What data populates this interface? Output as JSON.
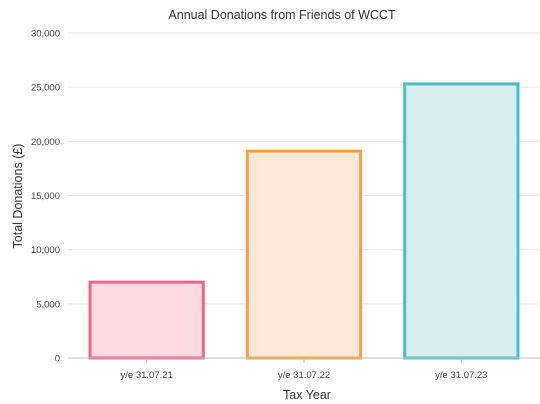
{
  "chart_data": {
    "type": "bar",
    "title": "Annual Donations from Friends of WCCT",
    "xlabel": "Tax Year",
    "ylabel": "Total Donations (£)",
    "categories": [
      "y/e 31.07.21",
      "y/e 31.07.22",
      "y/e 31.07.23"
    ],
    "values": [
      7000,
      19100,
      25300
    ],
    "ylim": [
      0,
      30000
    ],
    "y_ticks": [
      0,
      5000,
      10000,
      15000,
      20000,
      25000,
      30000
    ],
    "y_tick_labels": [
      "0",
      "5,000",
      "10,000",
      "15,000",
      "20,000",
      "25,000",
      "30,000"
    ],
    "grid": true,
    "legend": "none",
    "bar_colors": [
      {
        "fill": "#fdd9e1",
        "stroke": "#f2648a"
      },
      {
        "fill": "#fde9d6",
        "stroke": "#f8a23f"
      },
      {
        "fill": "#d9eef0",
        "stroke": "#4bbfbf"
      }
    ]
  }
}
